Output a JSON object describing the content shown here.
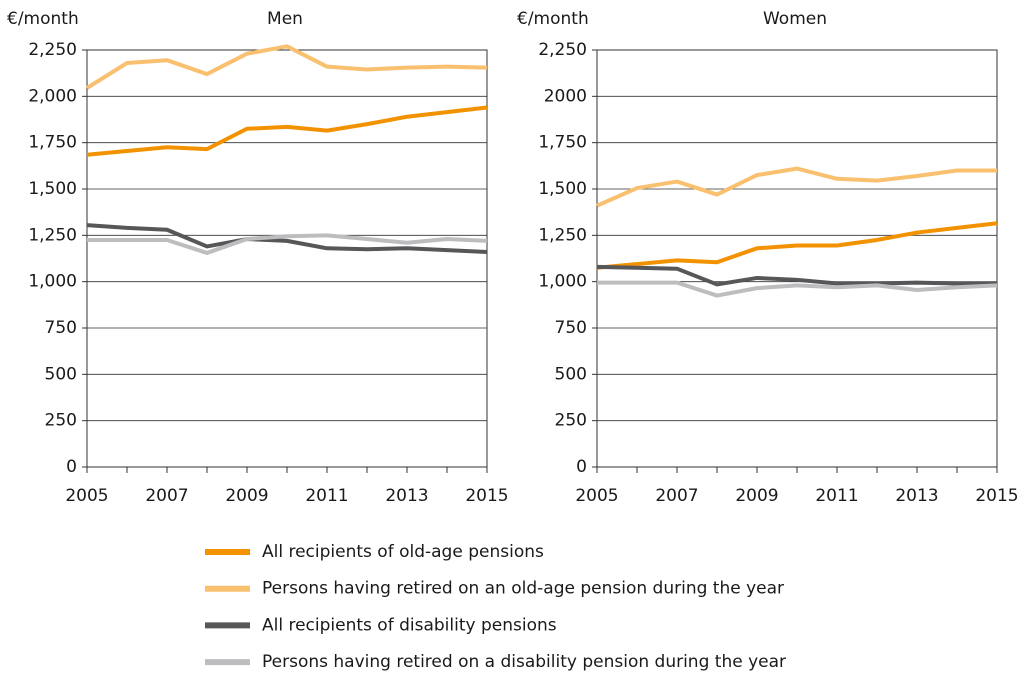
{
  "chart_data": [
    {
      "type": "line",
      "unit_label": "€/month",
      "title": "Men",
      "x": [
        2005,
        2006,
        2007,
        2008,
        2009,
        2010,
        2011,
        2012,
        2013,
        2014,
        2015
      ],
      "xlim": [
        2005,
        2015
      ],
      "xticks": [
        2005,
        2007,
        2009,
        2011,
        2013,
        2015
      ],
      "ylim": [
        0,
        2250
      ],
      "yticks": [
        0,
        250,
        500,
        750,
        {
          "value": 1000,
          "label": "1,000"
        },
        {
          "value": 1250,
          "label": "1,250"
        },
        {
          "value": 1500,
          "label": "1,500"
        },
        {
          "value": 1750,
          "label": "1,750"
        },
        {
          "value": 2000,
          "label": "2,000"
        },
        {
          "value": 2250,
          "label": "2,250"
        }
      ],
      "grid": true,
      "series": [
        {
          "values": [
            1685,
            1705,
            1725,
            1715,
            1825,
            1835,
            1815,
            1850,
            1890,
            1915,
            1940
          ]
        },
        {
          "values": [
            2045,
            2180,
            2195,
            2120,
            2230,
            2270,
            2160,
            2145,
            2155,
            2160,
            2155
          ]
        },
        {
          "values": [
            1305,
            1290,
            1280,
            1190,
            1230,
            1220,
            1180,
            1175,
            1180,
            1170,
            1160
          ]
        },
        {
          "values": [
            1225,
            1225,
            1225,
            1155,
            1230,
            1245,
            1250,
            1230,
            1210,
            1230,
            1220
          ]
        }
      ]
    },
    {
      "type": "line",
      "unit_label": "€/month",
      "title": "Women",
      "x": [
        2005,
        2006,
        2007,
        2008,
        2009,
        2010,
        2011,
        2012,
        2013,
        2014,
        2015
      ],
      "xlim": [
        2005,
        2015
      ],
      "xticks": [
        2005,
        2007,
        2009,
        2011,
        2013,
        2015
      ],
      "ylim": [
        0,
        2250
      ],
      "yticks": [
        0,
        250,
        500,
        750,
        {
          "value": 1000,
          "label": "1,000"
        },
        {
          "value": 1250,
          "label": "1,250"
        },
        {
          "value": 1500,
          "label": "1,500"
        },
        {
          "value": 1750,
          "label": "1,750"
        },
        2000,
        {
          "value": 2250,
          "label": "2,250"
        }
      ],
      "grid": true,
      "series": [
        {
          "values": [
            1075,
            1095,
            1115,
            1105,
            1180,
            1195,
            1195,
            1225,
            1265,
            1290,
            1315
          ]
        },
        {
          "values": [
            1410,
            1505,
            1540,
            1470,
            1575,
            1610,
            1555,
            1545,
            1570,
            1600,
            1600
          ]
        },
        {
          "values": [
            1080,
            1075,
            1070,
            985,
            1020,
            1010,
            990,
            990,
            995,
            990,
            990
          ]
        },
        {
          "values": [
            995,
            995,
            995,
            925,
            965,
            980,
            970,
            980,
            955,
            970,
            980
          ]
        }
      ]
    }
  ],
  "legend": [
    {
      "name": "All recipients of old-age pensions",
      "color": "#f39200"
    },
    {
      "name": "Persons having retired on an old-age pension during the year",
      "color": "#f9c06f"
    },
    {
      "name": "All recipients of disability pensions",
      "color": "#57575a"
    },
    {
      "name": "Persons having retired on a disability pension during the year",
      "color": "#bdbdc0"
    }
  ]
}
